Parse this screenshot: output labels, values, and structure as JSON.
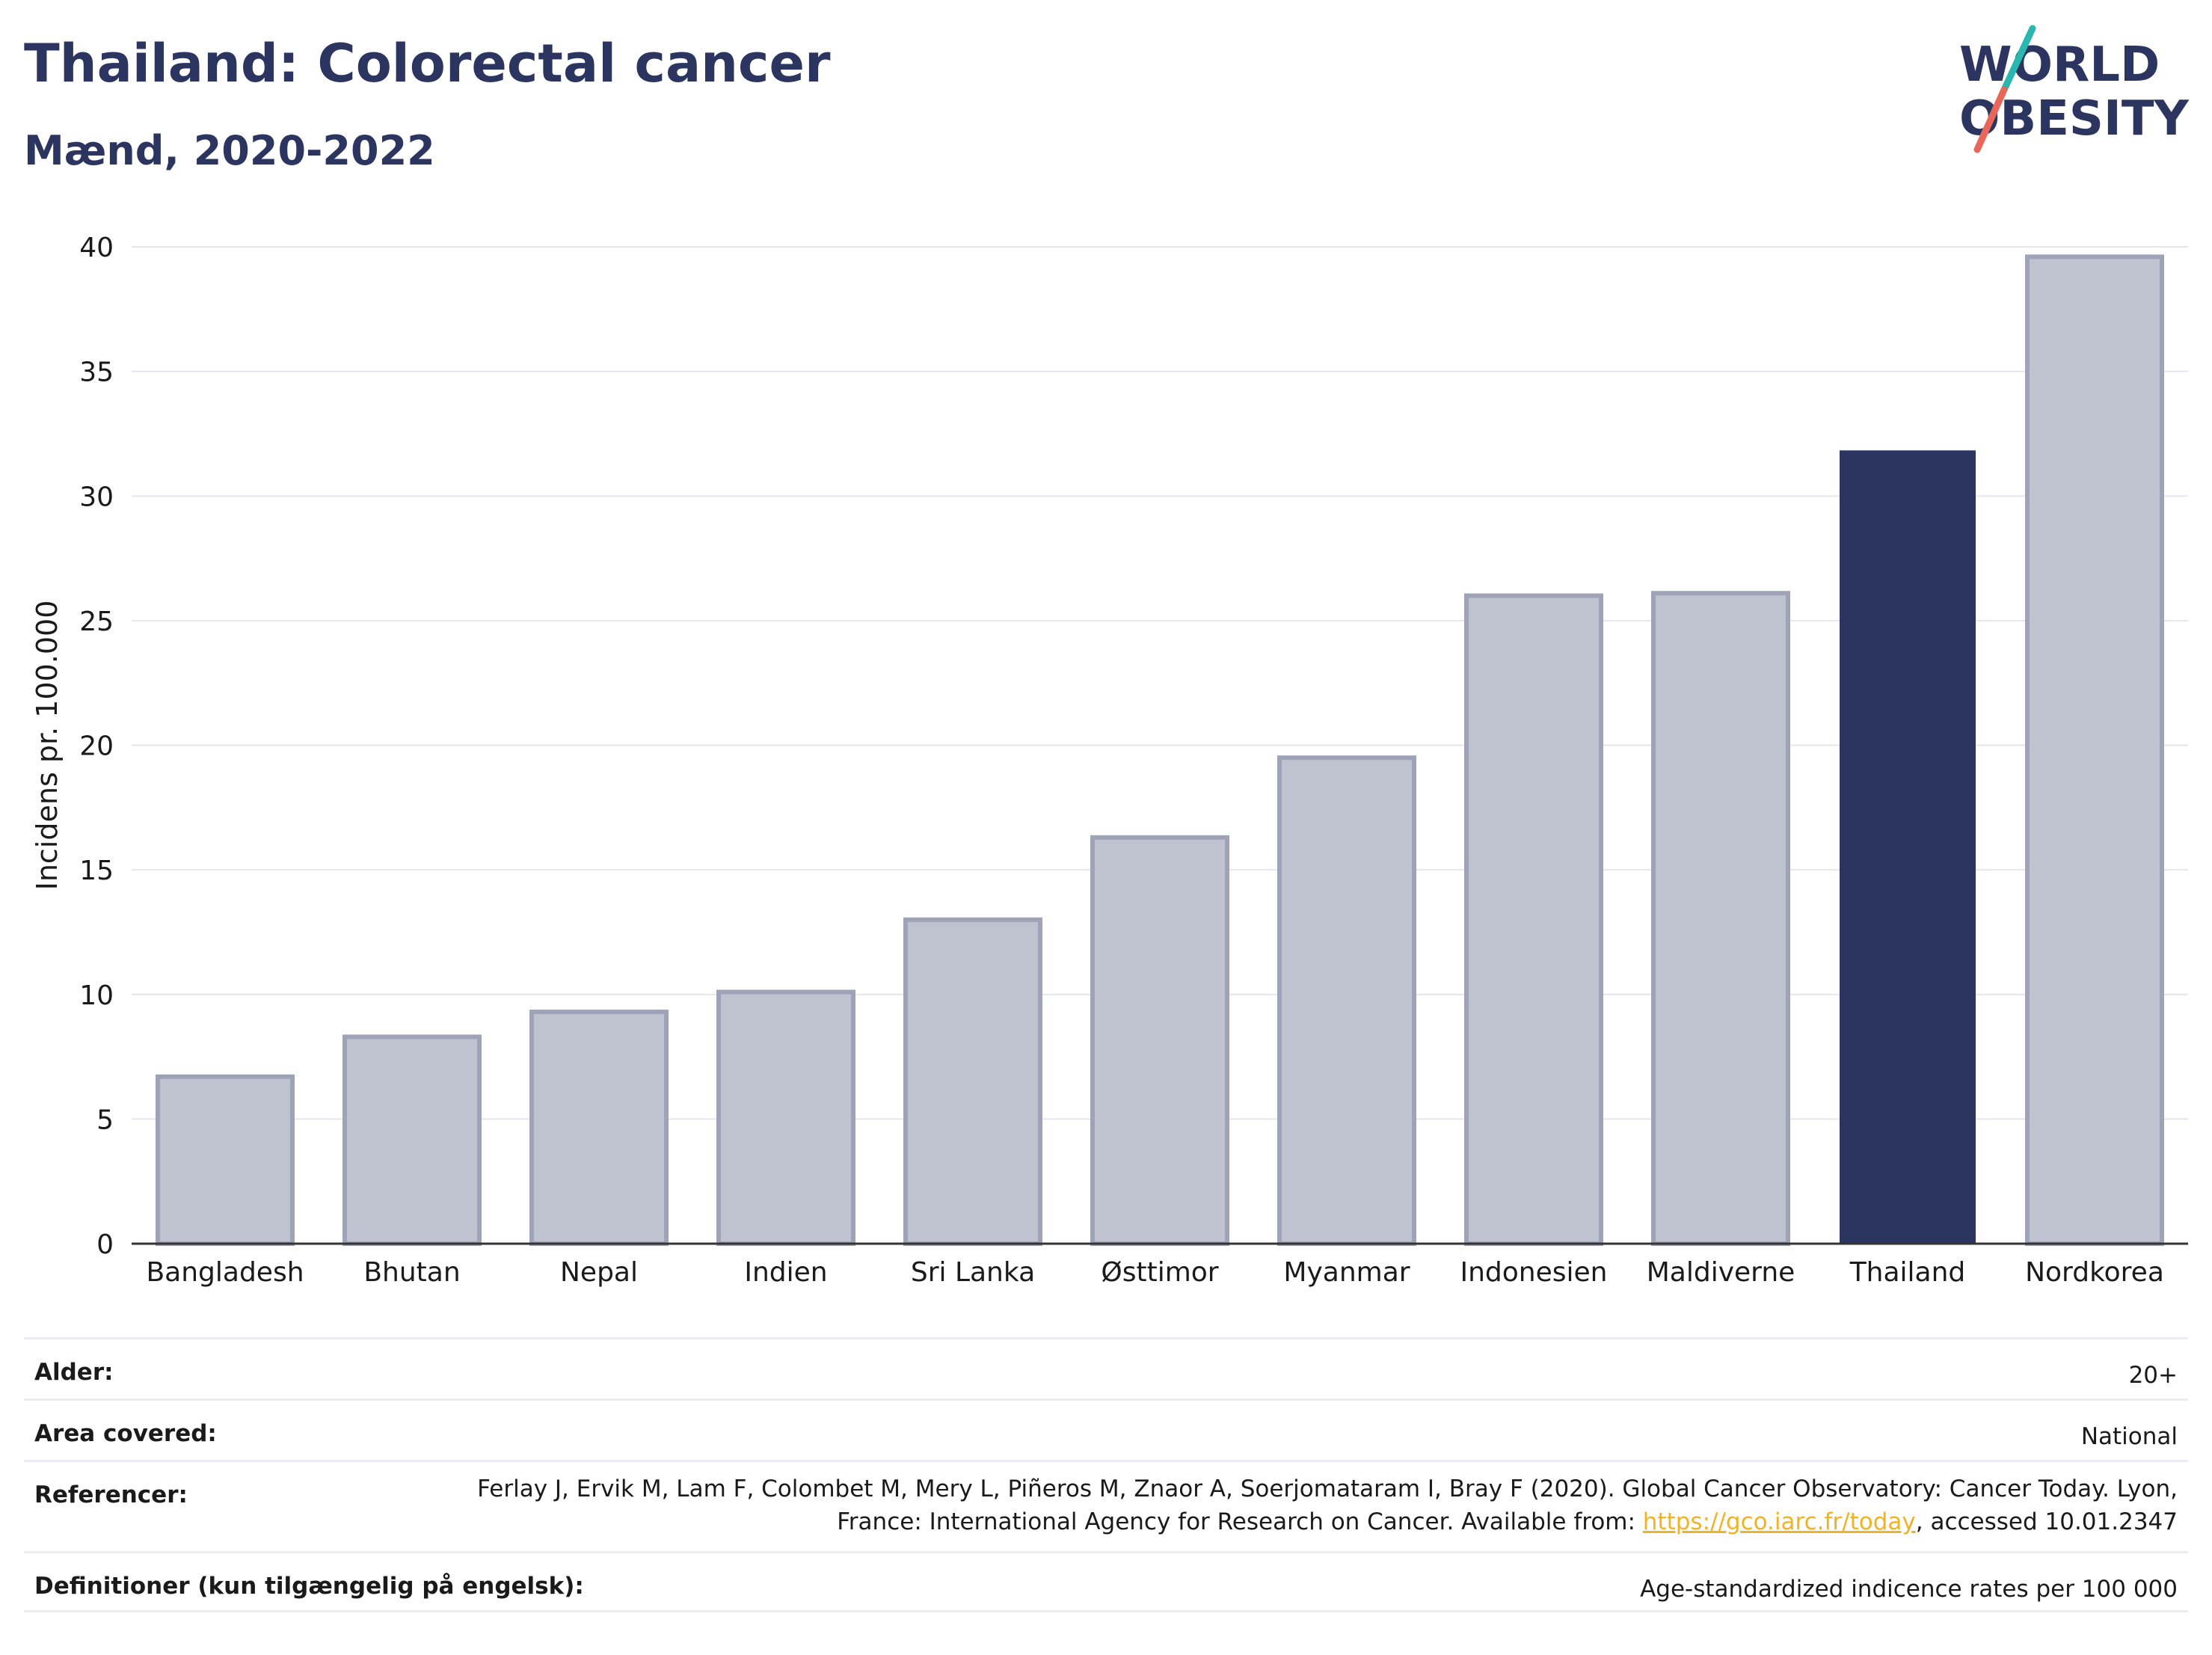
{
  "header": {
    "title": "Thailand: Colorectal cancer",
    "subtitle": "Mænd, 2020-2022"
  },
  "logo": {
    "line1": "WORLD",
    "line2": "OBESITY",
    "accent_teal": "#2bb7b1",
    "accent_red": "#e8675a"
  },
  "chart_data": {
    "type": "bar",
    "categories": [
      "Bangladesh",
      "Bhutan",
      "Nepal",
      "Indien",
      "Sri Lanka",
      "Østtimor",
      "Myanmar",
      "Indonesien",
      "Maldiverne",
      "Thailand",
      "Nordkorea"
    ],
    "values": [
      6.7,
      8.3,
      9.3,
      10.1,
      13.0,
      16.3,
      19.5,
      26.0,
      26.1,
      31.8,
      39.6
    ],
    "highlight": "Thailand",
    "ylabel": "Incidens pr. 100.000",
    "ylim": [
      0,
      40
    ],
    "yticks": [
      0,
      5,
      10,
      15,
      20,
      25,
      30,
      35,
      40
    ],
    "grid": true,
    "colors": {
      "bar": "#bfc2cf",
      "bar_edge": "#9ea3b8",
      "highlight": "#2b3560"
    }
  },
  "meta": {
    "age_label": "Alder:",
    "age_value": "20+",
    "area_label": "Area covered:",
    "area_value": "National",
    "ref_label": "Referencer:",
    "ref_text_1": "Ferlay J, Ervik M, Lam F, Colombet M, Mery L, Piñeros M, Znaor A, Soerjomataram I, Bray F (2020). Global Cancer Observatory: Cancer Today. Lyon, France: International Agency for Research on Cancer. Available from: ",
    "ref_link": "https://gco.iarc.fr/today",
    "ref_text_2": ", accessed 10.01.2347",
    "def_label": "Definitioner (kun tilgængelig på engelsk):",
    "def_value": "Age-standardized indicence rates per 100 000"
  }
}
